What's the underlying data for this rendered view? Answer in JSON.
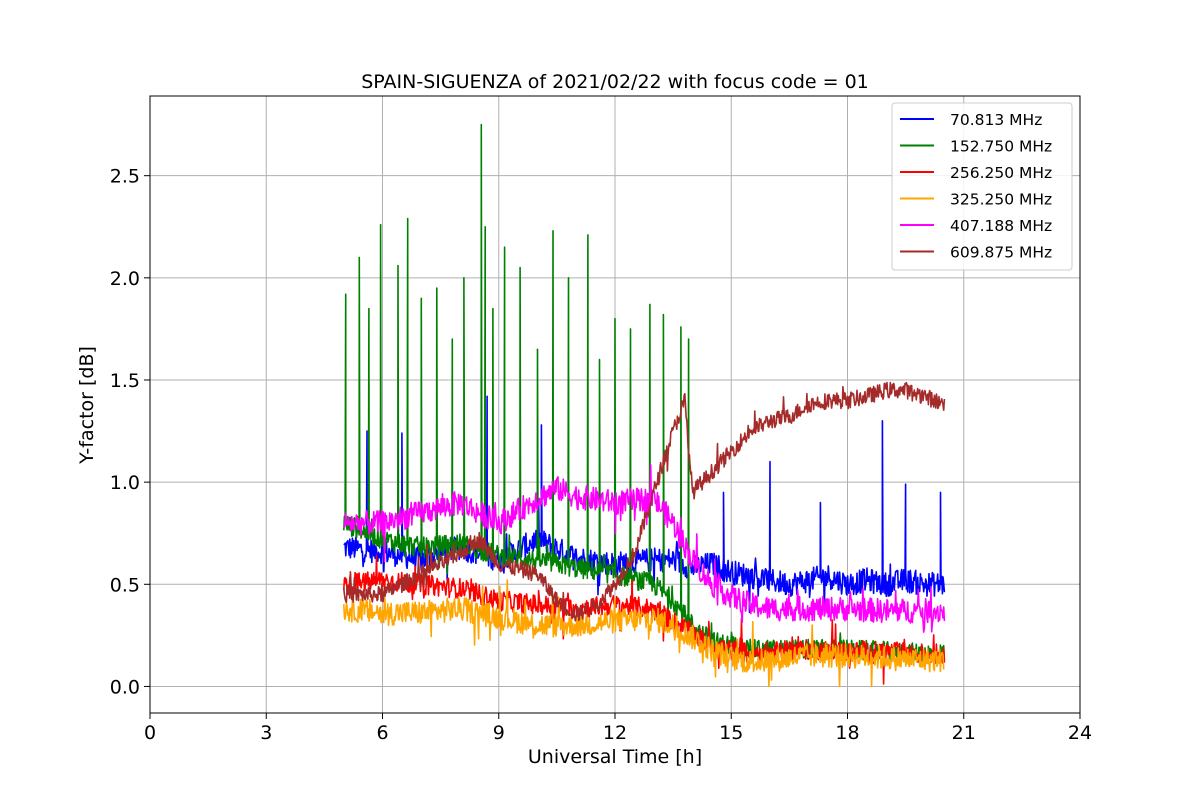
{
  "chart_data": {
    "type": "line",
    "title": "SPAIN-SIGUENZA of 2021/02/22 with focus code = 01",
    "xlabel": "Universal Time [h]",
    "ylabel": "Y-factor [dB]",
    "xlim": [
      0,
      24
    ],
    "ylim": [
      -0.13,
      2.89
    ],
    "xticks": [
      0,
      3,
      6,
      9,
      12,
      15,
      18,
      21,
      24
    ],
    "xtick_labels": [
      "0",
      "3",
      "6",
      "9",
      "12",
      "15",
      "18",
      "21",
      "24"
    ],
    "yticks": [
      0.0,
      0.5,
      1.0,
      1.5,
      2.0,
      2.5
    ],
    "ytick_labels": [
      "0.0",
      "0.5",
      "1.0",
      "1.5",
      "2.0",
      "2.5"
    ],
    "grid": true,
    "legend_position": "top-right",
    "series": [
      {
        "name": " 70.813 MHz",
        "color": "#0000ff",
        "x": [
          5.0,
          6.0,
          7.0,
          8.0,
          9.0,
          10.0,
          11.0,
          12.0,
          13.0,
          13.5,
          14.0,
          14.5,
          15.0,
          15.5,
          16.0,
          16.5,
          17.0,
          17.5,
          18.0,
          18.5,
          19.0,
          19.5,
          20.0,
          20.5
        ],
        "y": [
          0.68,
          0.66,
          0.62,
          0.68,
          0.62,
          0.72,
          0.63,
          0.6,
          0.62,
          0.62,
          0.58,
          0.6,
          0.56,
          0.54,
          0.52,
          0.5,
          0.52,
          0.54,
          0.5,
          0.52,
          0.5,
          0.52,
          0.5,
          0.5
        ],
        "noise": 0.06,
        "spikes": [
          [
            5.6,
            1.25
          ],
          [
            6.5,
            1.24
          ],
          [
            8.7,
            1.42
          ],
          [
            10.1,
            1.28
          ],
          [
            14.8,
            0.95
          ],
          [
            16.0,
            1.1
          ],
          [
            17.3,
            0.9
          ],
          [
            18.9,
            1.3
          ],
          [
            19.5,
            0.99
          ],
          [
            20.4,
            0.95
          ]
        ]
      },
      {
        "name": "152.750 MHz",
        "color": "#008000",
        "x": [
          5.0,
          6.0,
          7.0,
          8.0,
          9.0,
          10.0,
          11.0,
          12.0,
          13.0,
          13.5,
          14.0,
          14.5,
          15.0,
          15.5,
          16.0,
          17.0,
          18.0,
          19.0,
          20.0,
          20.5
        ],
        "y": [
          0.8,
          0.72,
          0.68,
          0.7,
          0.64,
          0.62,
          0.58,
          0.55,
          0.5,
          0.42,
          0.3,
          0.22,
          0.2,
          0.18,
          0.18,
          0.18,
          0.18,
          0.17,
          0.16,
          0.16
        ],
        "noise": 0.05,
        "spikes": [
          [
            5.05,
            1.92
          ],
          [
            5.4,
            2.1
          ],
          [
            5.65,
            1.85
          ],
          [
            5.95,
            2.26
          ],
          [
            6.4,
            2.06
          ],
          [
            6.65,
            2.29
          ],
          [
            7.0,
            1.9
          ],
          [
            7.4,
            1.95
          ],
          [
            7.8,
            1.7
          ],
          [
            8.1,
            2.0
          ],
          [
            8.55,
            2.75
          ],
          [
            8.65,
            2.25
          ],
          [
            8.85,
            1.85
          ],
          [
            9.15,
            2.15
          ],
          [
            9.55,
            2.05
          ],
          [
            10.0,
            1.65
          ],
          [
            10.4,
            2.23
          ],
          [
            10.8,
            2.0
          ],
          [
            11.3,
            2.21
          ],
          [
            11.6,
            1.6
          ],
          [
            12.0,
            1.8
          ],
          [
            12.4,
            1.75
          ],
          [
            12.9,
            1.87
          ],
          [
            13.25,
            1.82
          ],
          [
            13.7,
            1.76
          ],
          [
            13.9,
            1.7
          ]
        ]
      },
      {
        "name": "256.250 MHz",
        "color": "#ff0000",
        "x": [
          5.0,
          6.0,
          7.0,
          8.0,
          9.0,
          10.0,
          11.0,
          12.0,
          13.0,
          13.5,
          14.0,
          14.5,
          15.0,
          15.5,
          16.0,
          17.0,
          18.0,
          19.0,
          20.0,
          20.5
        ],
        "y": [
          0.5,
          0.52,
          0.5,
          0.48,
          0.42,
          0.4,
          0.38,
          0.4,
          0.38,
          0.32,
          0.26,
          0.2,
          0.18,
          0.16,
          0.17,
          0.18,
          0.17,
          0.17,
          0.16,
          0.16
        ],
        "noise": 0.05,
        "spikes": []
      },
      {
        "name": "325.250 MHz",
        "color": "#ffa500",
        "x": [
          5.0,
          6.0,
          7.0,
          8.0,
          9.0,
          10.0,
          11.0,
          12.0,
          13.0,
          13.5,
          14.0,
          14.5,
          15.0,
          15.5,
          16.0,
          17.0,
          18.0,
          19.0,
          20.0,
          20.5
        ],
        "y": [
          0.38,
          0.36,
          0.36,
          0.38,
          0.34,
          0.3,
          0.3,
          0.32,
          0.33,
          0.3,
          0.24,
          0.18,
          0.14,
          0.12,
          0.13,
          0.15,
          0.15,
          0.14,
          0.13,
          0.13
        ],
        "noise": 0.06,
        "spikes": []
      },
      {
        "name": "407.188 MHz",
        "color": "#ff00ff",
        "x": [
          5.0,
          6.0,
          7.0,
          8.0,
          9.0,
          10.0,
          10.5,
          11.0,
          12.0,
          13.0,
          13.5,
          14.0,
          14.5,
          15.0,
          15.5,
          16.0,
          17.0,
          18.0,
          19.0,
          20.0,
          20.5
        ],
        "y": [
          0.8,
          0.8,
          0.85,
          0.9,
          0.8,
          0.92,
          0.97,
          0.93,
          0.9,
          0.92,
          0.8,
          0.62,
          0.5,
          0.44,
          0.4,
          0.38,
          0.38,
          0.38,
          0.37,
          0.37,
          0.37
        ],
        "noise": 0.06,
        "spikes": []
      },
      {
        "name": "609.875 MHz",
        "color": "#a52a2a",
        "x": [
          5.0,
          6.0,
          7.0,
          8.0,
          8.5,
          9.0,
          10.0,
          10.5,
          11.0,
          11.5,
          12.0,
          12.5,
          13.0,
          13.5,
          13.8,
          14.0,
          14.5,
          15.0,
          15.5,
          16.0,
          16.5,
          17.0,
          17.5,
          18.0,
          18.5,
          19.0,
          19.5,
          20.0,
          20.5
        ],
        "y": [
          0.45,
          0.45,
          0.55,
          0.65,
          0.72,
          0.6,
          0.55,
          0.42,
          0.35,
          0.4,
          0.5,
          0.65,
          0.95,
          1.25,
          1.4,
          0.95,
          1.05,
          1.15,
          1.25,
          1.3,
          1.32,
          1.38,
          1.4,
          1.4,
          1.42,
          1.45,
          1.45,
          1.42,
          1.38
        ],
        "noise": 0.04,
        "spikes": []
      }
    ]
  }
}
